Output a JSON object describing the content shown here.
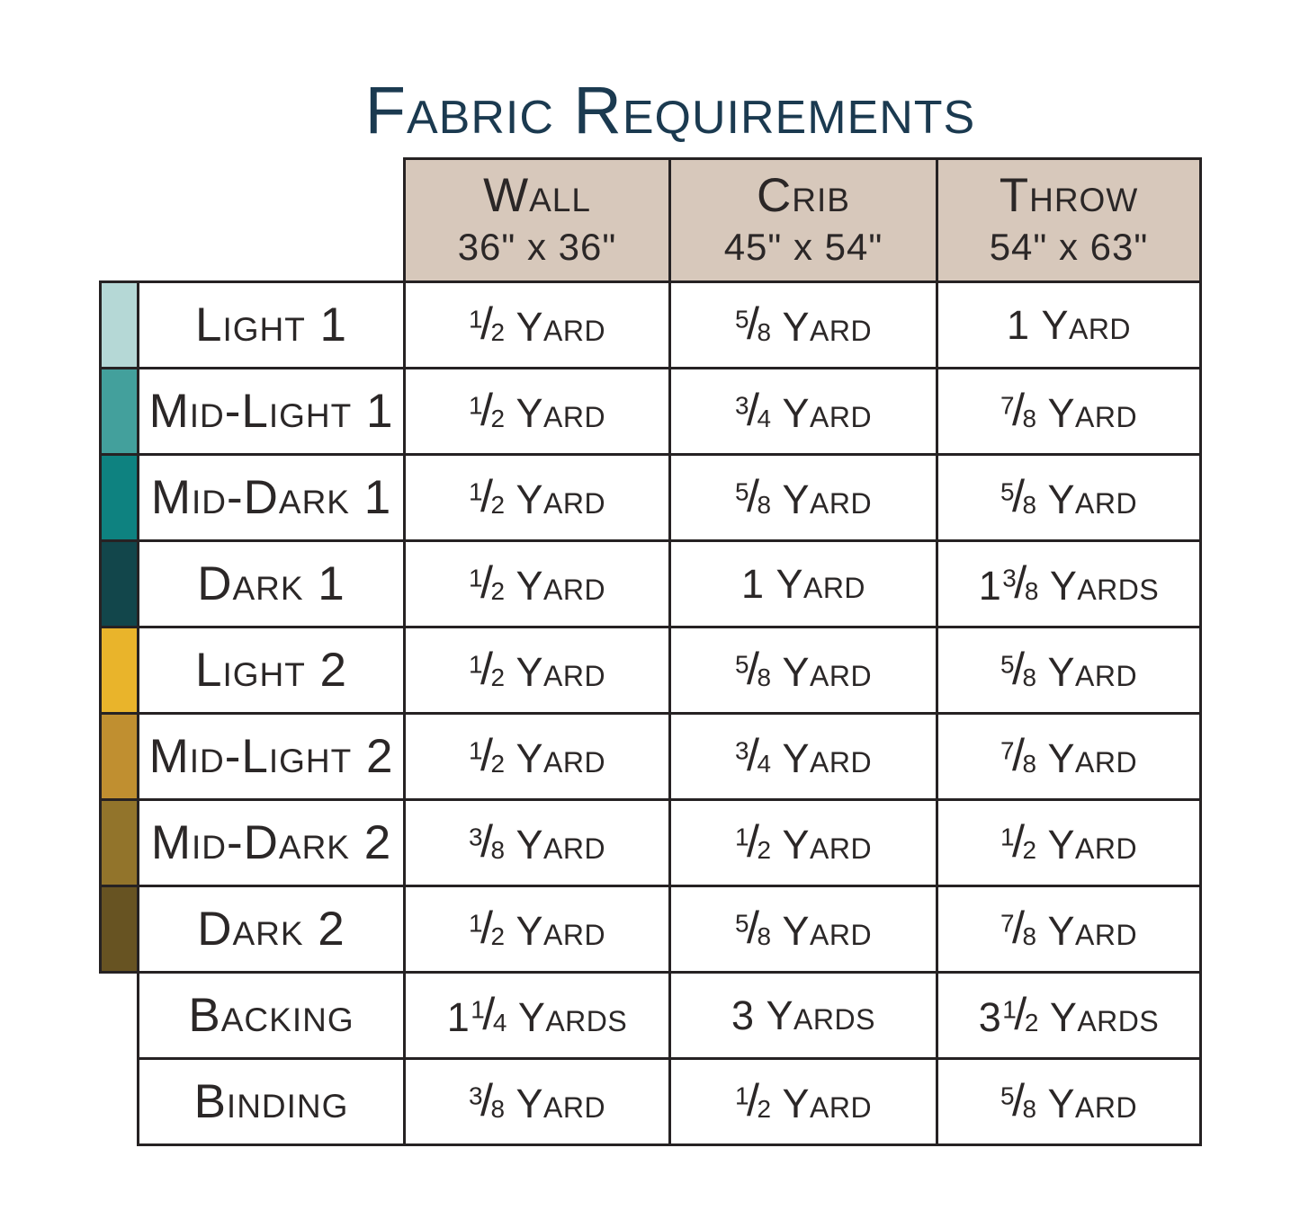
{
  "title": "Fabric Requirements",
  "colors": {
    "title_text": "#1b3a50",
    "header_bg": "#d7c8bb",
    "border": "#262223",
    "body_text": "#2b2727",
    "page_bg": "#ffffff"
  },
  "header": {
    "columns": [
      {
        "name": "Wall",
        "size": "36\" x 36\""
      },
      {
        "name": "Crib",
        "size": "45\" x 54\""
      },
      {
        "name": "Throw",
        "size": "54\" x 63\""
      }
    ]
  },
  "rows": [
    {
      "label": "Light 1",
      "swatch": "#b5d8d6",
      "values": [
        {
          "num": "1",
          "den": "2",
          "unit": "Yard"
        },
        {
          "num": "5",
          "den": "8",
          "unit": "Yard"
        },
        {
          "whole": "1",
          "unit": "Yard"
        }
      ]
    },
    {
      "label": "Mid-Light 1",
      "swatch": "#43a09c",
      "values": [
        {
          "num": "1",
          "den": "2",
          "unit": "Yard"
        },
        {
          "num": "3",
          "den": "4",
          "unit": "Yard"
        },
        {
          "num": "7",
          "den": "8",
          "unit": "Yard"
        }
      ]
    },
    {
      "label": "Mid-Dark 1",
      "swatch": "#0e8280",
      "values": [
        {
          "num": "1",
          "den": "2",
          "unit": "Yard"
        },
        {
          "num": "5",
          "den": "8",
          "unit": "Yard"
        },
        {
          "num": "5",
          "den": "8",
          "unit": "Yard"
        }
      ]
    },
    {
      "label": "Dark 1",
      "swatch": "#12464b",
      "values": [
        {
          "num": "1",
          "den": "2",
          "unit": "Yard"
        },
        {
          "whole": "1",
          "unit": "Yard"
        },
        {
          "whole": "1",
          "num": "3",
          "den": "8",
          "unit": "Yards"
        }
      ]
    },
    {
      "label": "Light 2",
      "swatch": "#e9b42b",
      "values": [
        {
          "num": "1",
          "den": "2",
          "unit": "Yard"
        },
        {
          "num": "5",
          "den": "8",
          "unit": "Yard"
        },
        {
          "num": "5",
          "den": "8",
          "unit": "Yard"
        }
      ]
    },
    {
      "label": "Mid-Light 2",
      "swatch": "#c08f30",
      "values": [
        {
          "num": "1",
          "den": "2",
          "unit": "Yard"
        },
        {
          "num": "3",
          "den": "4",
          "unit": "Yard"
        },
        {
          "num": "7",
          "den": "8",
          "unit": "Yard"
        }
      ]
    },
    {
      "label": "Mid-Dark 2",
      "swatch": "#92742b",
      "values": [
        {
          "num": "3",
          "den": "8",
          "unit": "Yard"
        },
        {
          "num": "1",
          "den": "2",
          "unit": "Yard"
        },
        {
          "num": "1",
          "den": "2",
          "unit": "Yard"
        }
      ]
    },
    {
      "label": "Dark 2",
      "swatch": "#675322",
      "values": [
        {
          "num": "1",
          "den": "2",
          "unit": "Yard"
        },
        {
          "num": "5",
          "den": "8",
          "unit": "Yard"
        },
        {
          "num": "7",
          "den": "8",
          "unit": "Yard"
        }
      ]
    },
    {
      "label": "Backing",
      "swatch": null,
      "values": [
        {
          "whole": "1",
          "num": "1",
          "den": "4",
          "unit": "Yards"
        },
        {
          "whole": "3",
          "unit": "Yards"
        },
        {
          "whole": "3",
          "num": "1",
          "den": "2",
          "unit": "Yards"
        }
      ]
    },
    {
      "label": "Binding",
      "swatch": null,
      "values": [
        {
          "num": "3",
          "den": "8",
          "unit": "Yard"
        },
        {
          "num": "1",
          "den": "2",
          "unit": "Yard"
        },
        {
          "num": "5",
          "den": "8",
          "unit": "Yard"
        }
      ]
    }
  ]
}
